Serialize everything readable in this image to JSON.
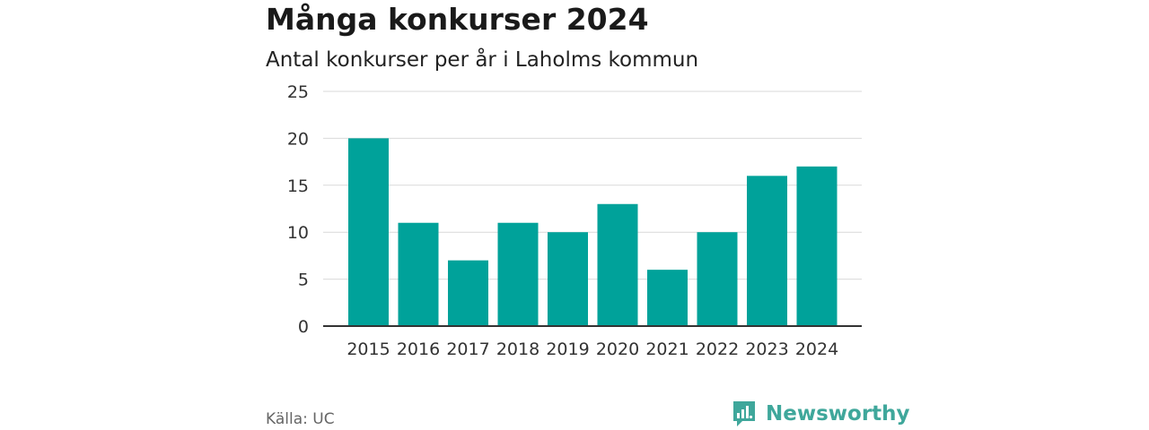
{
  "title": "Många konkurser 2024",
  "subtitle": "Antal konkurser per år i Laholms kommun",
  "source": "Källa: UC",
  "brand": {
    "name": "Newsworthy",
    "icon": "newsworthy-logo-icon",
    "color": "#3fa79b"
  },
  "chart_data": {
    "type": "bar",
    "title": "Många konkurser 2024",
    "subtitle": "Antal konkurser per år i Laholms kommun",
    "xlabel": "",
    "ylabel": "",
    "categories": [
      "2015",
      "2016",
      "2017",
      "2018",
      "2019",
      "2020",
      "2021",
      "2022",
      "2023",
      "2024"
    ],
    "values": [
      20,
      11,
      7,
      11,
      10,
      13,
      6,
      10,
      16,
      17
    ],
    "ylim": [
      0,
      25
    ],
    "yticks": [
      "0",
      "5",
      "10",
      "15",
      "20",
      "25"
    ],
    "grid": true,
    "bar_color": "#00a29a",
    "legend": "none"
  }
}
